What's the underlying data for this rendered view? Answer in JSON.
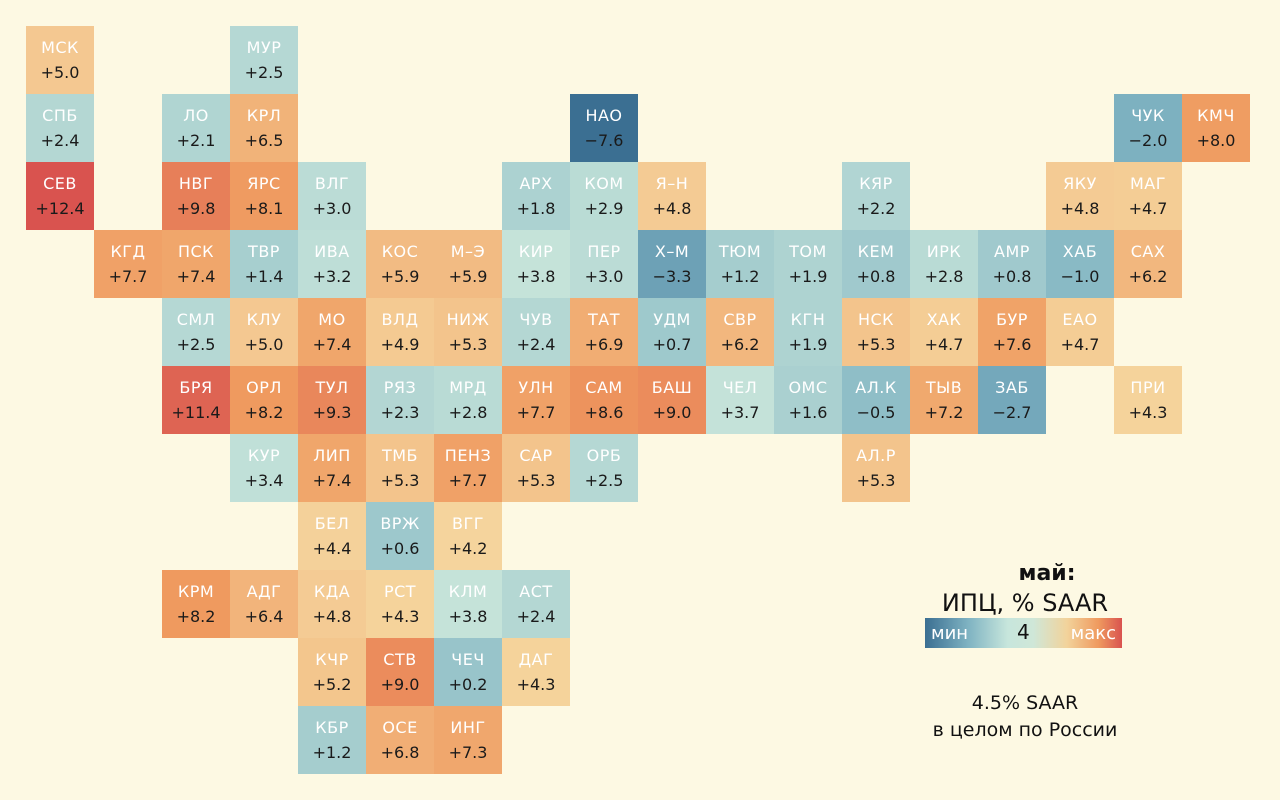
{
  "legend": {
    "month": "май:",
    "title": "ИПЦ, % SAAR",
    "min_label": "мин",
    "mid_value": "4",
    "max_label": "макс",
    "scale_min": -7.6,
    "scale_mid": 4,
    "scale_max": 12.4,
    "colors": [
      "#3b6f92",
      "#7fb3c2",
      "#c8e5da",
      "#f5d7a0",
      "#ef9a5f",
      "#d9534f"
    ]
  },
  "summary": {
    "line1": "4.5% SAAR",
    "line2": "в целом по России"
  },
  "regions": [
    {
      "code": "МСК",
      "value": "+5.0",
      "num": 5.0,
      "col": 0,
      "row": 0
    },
    {
      "code": "МУР",
      "value": "+2.5",
      "num": 2.5,
      "col": 3,
      "row": 0
    },
    {
      "code": "СПБ",
      "value": "+2.4",
      "num": 2.4,
      "col": 0,
      "row": 1
    },
    {
      "code": "ЛО",
      "value": "+2.1",
      "num": 2.1,
      "col": 2,
      "row": 1
    },
    {
      "code": "КРЛ",
      "value": "+6.5",
      "num": 6.5,
      "col": 3,
      "row": 1
    },
    {
      "code": "НАО",
      "value": "−7.6",
      "num": -7.6,
      "col": 8,
      "row": 1
    },
    {
      "code": "ЧУК",
      "value": "−2.0",
      "num": -2.0,
      "col": 16,
      "row": 1
    },
    {
      "code": "КМЧ",
      "value": "+8.0",
      "num": 8.0,
      "col": 17,
      "row": 1
    },
    {
      "code": "СЕВ",
      "value": "+12.4",
      "num": 12.4,
      "col": 0,
      "row": 2
    },
    {
      "code": "НВГ",
      "value": "+9.8",
      "num": 9.8,
      "col": 2,
      "row": 2
    },
    {
      "code": "ЯРС",
      "value": "+8.1",
      "num": 8.1,
      "col": 3,
      "row": 2
    },
    {
      "code": "ВЛГ",
      "value": "+3.0",
      "num": 3.0,
      "col": 4,
      "row": 2
    },
    {
      "code": "АРХ",
      "value": "+1.8",
      "num": 1.8,
      "col": 7,
      "row": 2
    },
    {
      "code": "КОМ",
      "value": "+2.9",
      "num": 2.9,
      "col": 8,
      "row": 2
    },
    {
      "code": "Я–Н",
      "value": "+4.8",
      "num": 4.8,
      "col": 9,
      "row": 2
    },
    {
      "code": "КЯР",
      "value": "+2.2",
      "num": 2.2,
      "col": 12,
      "row": 2
    },
    {
      "code": "ЯКУ",
      "value": "+4.8",
      "num": 4.8,
      "col": 15,
      "row": 2
    },
    {
      "code": "МАГ",
      "value": "+4.7",
      "num": 4.7,
      "col": 16,
      "row": 2
    },
    {
      "code": "КГД",
      "value": "+7.7",
      "num": 7.7,
      "col": 1,
      "row": 3
    },
    {
      "code": "ПСК",
      "value": "+7.4",
      "num": 7.4,
      "col": 2,
      "row": 3
    },
    {
      "code": "ТВР",
      "value": "+1.4",
      "num": 1.4,
      "col": 3,
      "row": 3
    },
    {
      "code": "ИВА",
      "value": "+3.2",
      "num": 3.2,
      "col": 4,
      "row": 3
    },
    {
      "code": "КОС",
      "value": "+5.9",
      "num": 5.9,
      "col": 5,
      "row": 3
    },
    {
      "code": "М–Э",
      "value": "+5.9",
      "num": 5.9,
      "col": 6,
      "row": 3
    },
    {
      "code": "КИР",
      "value": "+3.8",
      "num": 3.8,
      "col": 7,
      "row": 3
    },
    {
      "code": "ПЕР",
      "value": "+3.0",
      "num": 3.0,
      "col": 8,
      "row": 3
    },
    {
      "code": "Х–М",
      "value": "−3.3",
      "num": -3.3,
      "col": 9,
      "row": 3
    },
    {
      "code": "ТЮМ",
      "value": "+1.2",
      "num": 1.2,
      "col": 10,
      "row": 3
    },
    {
      "code": "ТОМ",
      "value": "+1.9",
      "num": 1.9,
      "col": 11,
      "row": 3
    },
    {
      "code": "КЕМ",
      "value": "+0.8",
      "num": 0.8,
      "col": 12,
      "row": 3
    },
    {
      "code": "ИРК",
      "value": "+2.8",
      "num": 2.8,
      "col": 13,
      "row": 3
    },
    {
      "code": "АМР",
      "value": "+0.8",
      "num": 0.8,
      "col": 14,
      "row": 3
    },
    {
      "code": "ХАБ",
      "value": "−1.0",
      "num": -1.0,
      "col": 15,
      "row": 3
    },
    {
      "code": "САХ",
      "value": "+6.2",
      "num": 6.2,
      "col": 16,
      "row": 3
    },
    {
      "code": "СМЛ",
      "value": "+2.5",
      "num": 2.5,
      "col": 2,
      "row": 4
    },
    {
      "code": "КЛУ",
      "value": "+5.0",
      "num": 5.0,
      "col": 3,
      "row": 4
    },
    {
      "code": "МО",
      "value": "+7.4",
      "num": 7.4,
      "col": 4,
      "row": 4
    },
    {
      "code": "ВЛД",
      "value": "+4.9",
      "num": 4.9,
      "col": 5,
      "row": 4
    },
    {
      "code": "НИЖ",
      "value": "+5.3",
      "num": 5.3,
      "col": 6,
      "row": 4
    },
    {
      "code": "ЧУВ",
      "value": "+2.4",
      "num": 2.4,
      "col": 7,
      "row": 4
    },
    {
      "code": "ТАТ",
      "value": "+6.9",
      "num": 6.9,
      "col": 8,
      "row": 4
    },
    {
      "code": "УДМ",
      "value": "+0.7",
      "num": 0.7,
      "col": 9,
      "row": 4
    },
    {
      "code": "СВР",
      "value": "+6.2",
      "num": 6.2,
      "col": 10,
      "row": 4
    },
    {
      "code": "КГН",
      "value": "+1.9",
      "num": 1.9,
      "col": 11,
      "row": 4
    },
    {
      "code": "НСК",
      "value": "+5.3",
      "num": 5.3,
      "col": 12,
      "row": 4
    },
    {
      "code": "ХАК",
      "value": "+4.7",
      "num": 4.7,
      "col": 13,
      "row": 4
    },
    {
      "code": "БУР",
      "value": "+7.6",
      "num": 7.6,
      "col": 14,
      "row": 4
    },
    {
      "code": "ЕАО",
      "value": "+4.7",
      "num": 4.7,
      "col": 15,
      "row": 4
    },
    {
      "code": "БРЯ",
      "value": "+11.4",
      "num": 11.4,
      "col": 2,
      "row": 5
    },
    {
      "code": "ОРЛ",
      "value": "+8.2",
      "num": 8.2,
      "col": 3,
      "row": 5
    },
    {
      "code": "ТУЛ",
      "value": "+9.3",
      "num": 9.3,
      "col": 4,
      "row": 5
    },
    {
      "code": "РЯЗ",
      "value": "+2.3",
      "num": 2.3,
      "col": 5,
      "row": 5
    },
    {
      "code": "МРД",
      "value": "+2.8",
      "num": 2.8,
      "col": 6,
      "row": 5
    },
    {
      "code": "УЛН",
      "value": "+7.7",
      "num": 7.7,
      "col": 7,
      "row": 5
    },
    {
      "code": "САМ",
      "value": "+8.6",
      "num": 8.6,
      "col": 8,
      "row": 5
    },
    {
      "code": "БАШ",
      "value": "+9.0",
      "num": 9.0,
      "col": 9,
      "row": 5
    },
    {
      "code": "ЧЕЛ",
      "value": "+3.7",
      "num": 3.7,
      "col": 10,
      "row": 5
    },
    {
      "code": "ОМС",
      "value": "+1.6",
      "num": 1.6,
      "col": 11,
      "row": 5
    },
    {
      "code": "АЛ.К",
      "value": "−0.5",
      "num": -0.5,
      "col": 12,
      "row": 5
    },
    {
      "code": "ТЫВ",
      "value": "+7.2",
      "num": 7.2,
      "col": 13,
      "row": 5
    },
    {
      "code": "ЗАБ",
      "value": "−2.7",
      "num": -2.7,
      "col": 14,
      "row": 5
    },
    {
      "code": "ПРИ",
      "value": "+4.3",
      "num": 4.3,
      "col": 16,
      "row": 5
    },
    {
      "code": "КУР",
      "value": "+3.4",
      "num": 3.4,
      "col": 3,
      "row": 6
    },
    {
      "code": "ЛИП",
      "value": "+7.4",
      "num": 7.4,
      "col": 4,
      "row": 6
    },
    {
      "code": "ТМБ",
      "value": "+5.3",
      "num": 5.3,
      "col": 5,
      "row": 6
    },
    {
      "code": "ПЕНЗ",
      "value": "+7.7",
      "num": 7.7,
      "col": 6,
      "row": 6
    },
    {
      "code": "САР",
      "value": "+5.3",
      "num": 5.3,
      "col": 7,
      "row": 6
    },
    {
      "code": "ОРБ",
      "value": "+2.5",
      "num": 2.5,
      "col": 8,
      "row": 6
    },
    {
      "code": "АЛ.Р",
      "value": "+5.3",
      "num": 5.3,
      "col": 12,
      "row": 6
    },
    {
      "code": "БЕЛ",
      "value": "+4.4",
      "num": 4.4,
      "col": 4,
      "row": 7
    },
    {
      "code": "ВРЖ",
      "value": "+0.6",
      "num": 0.6,
      "col": 5,
      "row": 7
    },
    {
      "code": "ВГГ",
      "value": "+4.2",
      "num": 4.2,
      "col": 6,
      "row": 7
    },
    {
      "code": "КРМ",
      "value": "+8.2",
      "num": 8.2,
      "col": 2,
      "row": 8
    },
    {
      "code": "АДГ",
      "value": "+6.4",
      "num": 6.4,
      "col": 3,
      "row": 8
    },
    {
      "code": "КДА",
      "value": "+4.8",
      "num": 4.8,
      "col": 4,
      "row": 8
    },
    {
      "code": "РСТ",
      "value": "+4.3",
      "num": 4.3,
      "col": 5,
      "row": 8
    },
    {
      "code": "КЛМ",
      "value": "+3.8",
      "num": 3.8,
      "col": 6,
      "row": 8
    },
    {
      "code": "АСТ",
      "value": "+2.4",
      "num": 2.4,
      "col": 7,
      "row": 8
    },
    {
      "code": "КЧР",
      "value": "+5.2",
      "num": 5.2,
      "col": 4,
      "row": 9
    },
    {
      "code": "СТВ",
      "value": "+9.0",
      "num": 9.0,
      "col": 5,
      "row": 9
    },
    {
      "code": "ЧЕЧ",
      "value": "+0.2",
      "num": 0.2,
      "col": 6,
      "row": 9
    },
    {
      "code": "ДАГ",
      "value": "+4.3",
      "num": 4.3,
      "col": 7,
      "row": 9
    },
    {
      "code": "КБР",
      "value": "+1.2",
      "num": 1.2,
      "col": 4,
      "row": 10
    },
    {
      "code": "ОСЕ",
      "value": "+6.8",
      "num": 6.8,
      "col": 5,
      "row": 10
    },
    {
      "code": "ИНГ",
      "value": "+7.3",
      "num": 7.3,
      "col": 6,
      "row": 10
    }
  ]
}
